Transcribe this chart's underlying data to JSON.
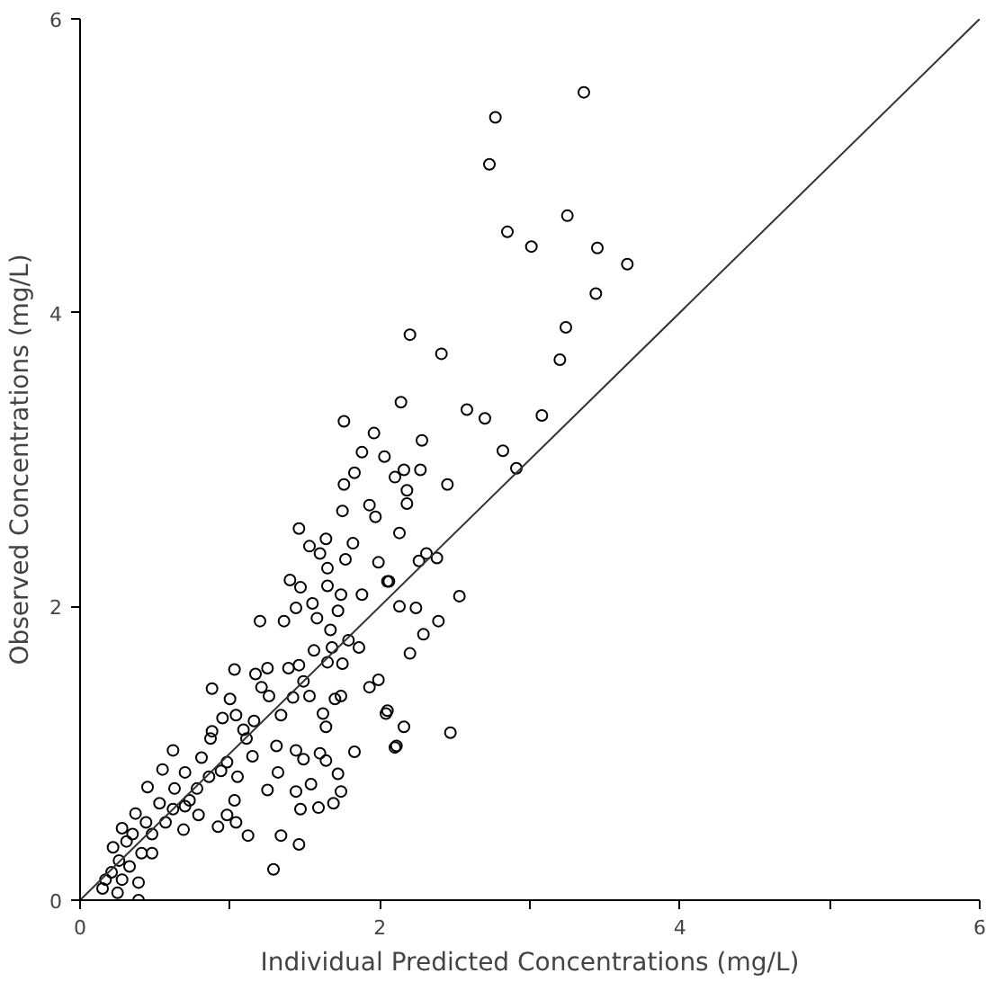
{
  "chart_data": {
    "type": "scatter",
    "xlabel": "Individual Predicted Concentrations (mg/L)",
    "ylabel": "Observed Concentrations (mg/L)",
    "xlim": [
      0,
      6
    ],
    "ylim": [
      0,
      6
    ],
    "xticks": [
      0,
      {
        "value": 1,
        "label": null
      },
      2,
      {
        "value": 3,
        "label": null
      },
      4,
      {
        "value": 5,
        "label": null
      },
      6
    ],
    "yticks": [
      0,
      2,
      4,
      6
    ],
    "grid": false,
    "marker": "circle",
    "series": [
      {
        "color": "#000000",
        "x": [
          3.36,
          2.77,
          2.73,
          3.25,
          2.85,
          3.01,
          3.45,
          3.65,
          3.44,
          2.2,
          2.41,
          3.24,
          3.2,
          2.14,
          1.76,
          2.58,
          2.7,
          3.08,
          1.96,
          2.28,
          1.88,
          2.82,
          2.03,
          2.91,
          2.45,
          2.53,
          2.39,
          2.29,
          2.2,
          2.47,
          2.16,
          2.1,
          2.04,
          2.31,
          2.38,
          2.26,
          2.24,
          2.13,
          2.06,
          2.13,
          2.18,
          2.18,
          2.27,
          2.16,
          2.1,
          1.83,
          1.76,
          1.46,
          1.93,
          1.97,
          1.75,
          1.64,
          1.53,
          1.6,
          1.82,
          1.77,
          1.99,
          1.65,
          1.4,
          1.47,
          1.65,
          1.74,
          1.88,
          2.05,
          1.55,
          1.44,
          1.2,
          1.36,
          1.58,
          1.72,
          1.67,
          1.56,
          1.68,
          1.79,
          1.86,
          1.03,
          1.25,
          1.39,
          1.46,
          1.17,
          1.65,
          1.75,
          1.49,
          1.99,
          1.93,
          0.88,
          1.0,
          1.21,
          1.26,
          1.42,
          1.53,
          1.7,
          1.74,
          1.34,
          1.04,
          0.95,
          1.16,
          1.62,
          1.64,
          2.05,
          2.11,
          1.83,
          0.88,
          1.11,
          1.31,
          1.44,
          1.6,
          0.62,
          0.81,
          0.98,
          1.15,
          1.32,
          1.49,
          1.64,
          1.72,
          0.55,
          0.45,
          0.7,
          0.86,
          1.05,
          1.25,
          1.44,
          1.54,
          1.74,
          0.53,
          0.73,
          1.03,
          0.79,
          1.47,
          1.59,
          1.69,
          0.92,
          1.04,
          0.98,
          0.69,
          0.57,
          1.12,
          1.34,
          1.46,
          1.29,
          0.37,
          0.44,
          0.48,
          0.31,
          0.26,
          0.21,
          0.15,
          0.25,
          0.39,
          0.39,
          0.35,
          0.28,
          0.48,
          0.41,
          0.22,
          0.33,
          0.17,
          0.28,
          0.63,
          0.78,
          0.7,
          0.62,
          0.87,
          0.94,
          1.09
        ],
        "values": [
          5.5,
          5.33,
          5.01,
          4.66,
          4.55,
          4.45,
          4.44,
          4.33,
          4.13,
          3.85,
          3.72,
          3.9,
          3.68,
          3.39,
          3.26,
          3.34,
          3.28,
          3.3,
          3.18,
          3.13,
          3.05,
          3.06,
          3.02,
          2.94,
          2.83,
          2.07,
          1.9,
          1.81,
          1.68,
          1.14,
          1.18,
          1.04,
          1.27,
          2.36,
          2.33,
          2.31,
          1.99,
          2.0,
          2.17,
          2.5,
          2.7,
          2.79,
          2.93,
          2.93,
          2.88,
          2.91,
          2.83,
          2.53,
          2.69,
          2.61,
          2.65,
          2.46,
          2.41,
          2.36,
          2.43,
          2.32,
          2.3,
          2.26,
          2.18,
          2.13,
          2.14,
          2.08,
          2.08,
          2.17,
          2.02,
          1.99,
          1.9,
          1.9,
          1.92,
          1.97,
          1.84,
          1.7,
          1.72,
          1.77,
          1.72,
          1.57,
          1.58,
          1.58,
          1.6,
          1.54,
          1.62,
          1.61,
          1.49,
          1.5,
          1.45,
          1.44,
          1.37,
          1.45,
          1.39,
          1.38,
          1.39,
          1.37,
          1.39,
          1.26,
          1.26,
          1.24,
          1.22,
          1.27,
          1.18,
          1.29,
          1.05,
          1.01,
          1.15,
          1.1,
          1.05,
          1.02,
          1.0,
          1.02,
          0.97,
          0.94,
          0.98,
          0.87,
          0.96,
          0.95,
          0.86,
          0.89,
          0.77,
          0.87,
          0.84,
          0.84,
          0.75,
          0.74,
          0.79,
          0.74,
          0.66,
          0.68,
          0.68,
          0.58,
          0.62,
          0.63,
          0.66,
          0.5,
          0.53,
          0.58,
          0.48,
          0.53,
          0.44,
          0.44,
          0.38,
          0.21,
          0.59,
          0.53,
          0.32,
          0.4,
          0.27,
          0.19,
          0.08,
          0.05,
          0.0,
          0.12,
          0.45,
          0.49,
          0.45,
          0.32,
          0.36,
          0.23,
          0.14,
          0.14,
          0.76,
          0.76,
          0.64,
          0.62,
          1.1,
          0.88,
          1.16
        ]
      },
      {
        "type": "line",
        "color": "#333333",
        "marker": "none",
        "x": [
          0,
          6
        ],
        "values": [
          0,
          6
        ]
      }
    ]
  }
}
